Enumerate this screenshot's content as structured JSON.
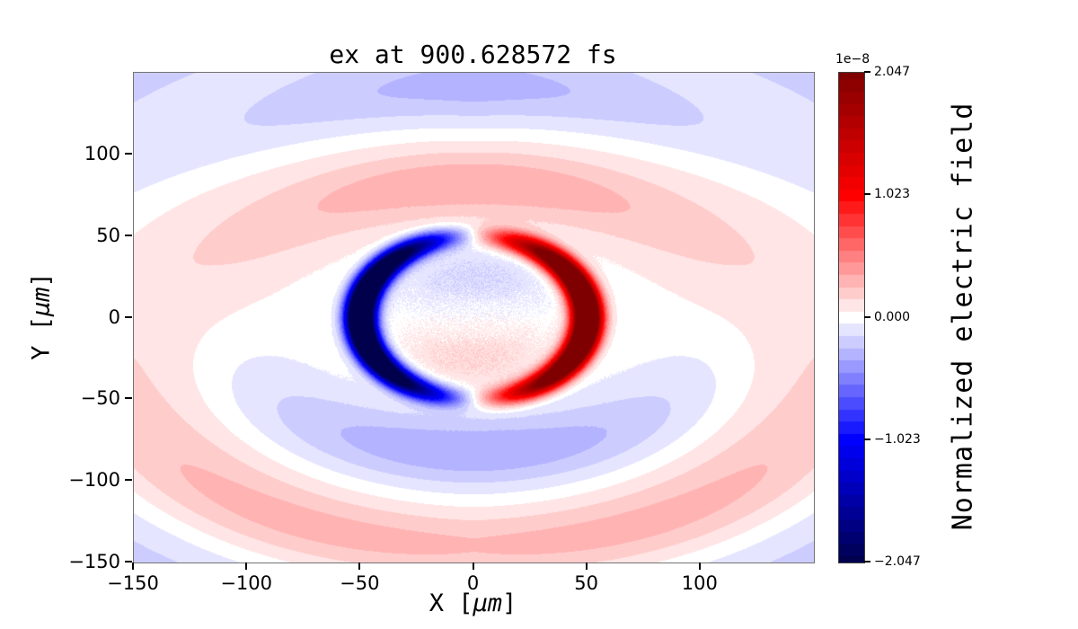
{
  "title": "ex at 900.628572 fs",
  "axes": {
    "xlabel": {
      "prefix": "X [",
      "unit": "μm",
      "suffix": "]"
    },
    "ylabel": {
      "prefix": "Y [",
      "unit": "μm",
      "suffix": "]"
    },
    "xlim": [
      -150,
      150
    ],
    "ylim": [
      -150,
      150
    ],
    "xticks": {
      "values": [
        -150,
        -100,
        -50,
        0,
        50,
        100
      ],
      "labels": [
        "−150",
        "−100",
        "−50",
        "0",
        "50",
        "100"
      ]
    },
    "yticks": {
      "values": [
        100,
        50,
        0,
        -50,
        -100,
        -150
      ],
      "labels": [
        "100",
        "50",
        "0",
        "−50",
        "−100",
        "−150"
      ]
    }
  },
  "colorbar": {
    "label": "Normalized electric field",
    "offset_text": "1e−8",
    "tick_values": [
      2.047,
      1.023,
      0,
      -1.023,
      -2.047
    ],
    "tick_labels": [
      "2.047",
      "1.023",
      "0.000",
      "−1.023",
      "−2.047"
    ]
  },
  "chart_data": {
    "type": "heatmap",
    "title": "ex at 900.628572 fs",
    "xlabel": "X [μm]",
    "ylabel": "Y [μm]",
    "xlim": [
      -150,
      150
    ],
    "ylim": [
      -150,
      150
    ],
    "colorbar_label": "Normalized electric field",
    "clim": [
      -2.047e-08,
      2.047e-08
    ],
    "colorbar_ticks": [
      2.047e-08,
      1.023e-08,
      0,
      -1.023e-08,
      -2.047e-08
    ],
    "scale_factor_label": "1e−8",
    "colormap": {
      "name": "seismic",
      "stops": [
        {
          "t": 0.0,
          "rgb": [
            0,
            0,
            77
          ]
        },
        {
          "t": 0.25,
          "rgb": [
            0,
            0,
            255
          ]
        },
        {
          "t": 0.5,
          "rgb": [
            255,
            255,
            255
          ]
        },
        {
          "t": 0.75,
          "rgb": [
            255,
            0,
            0
          ]
        },
        {
          "t": 1.0,
          "rgb": [
            127,
            0,
            0
          ]
        }
      ]
    },
    "structure_notes": "Dipole-like laser field snapshot: strong negative (deep blue) crescent centered near x≈−50 μm and strong positive (deep red) crescent near x≈+50 μm on a ring of radius ≈50 μm with gaps at top/bottom; faint pale-blue region above and pale-pink region below the origin with speckle noise; outer alternating elliptical wavefronts: pink band near y≈+80 / blue band near y≈−80, light blue arc near y≈+140 / pink arc near y≈−140, pale pink lobes at far left/right mid-edges, pale blue corners.",
    "field_model": {
      "levels": 41,
      "ring": {
        "radius": 50,
        "sigma": 4.5,
        "amp": 1.8,
        "angular": "cos"
      },
      "waves": [
        {
          "r0": 26,
          "sigma": 13,
          "amp": -0.08,
          "ellipticity": 1.0,
          "angular": "sin"
        },
        {
          "r0": 82,
          "sigma": 16,
          "amp": 0.17,
          "ellipticity": 1.35,
          "angular": "sin"
        },
        {
          "r0": 141,
          "sigma": 16,
          "amp": -0.14,
          "ellipticity": 1.25,
          "angular": "sin"
        },
        {
          "r0": 196,
          "sigma": 26,
          "amp": -0.1,
          "ellipticity": 1.25,
          "angular": "iso"
        },
        {
          "r0": 150,
          "sigma": 28,
          "amp": 0.07,
          "ellipticity": 1.0,
          "angular": "abscos"
        }
      ],
      "noise": {
        "amp": 0.09,
        "radius": 42
      }
    }
  }
}
